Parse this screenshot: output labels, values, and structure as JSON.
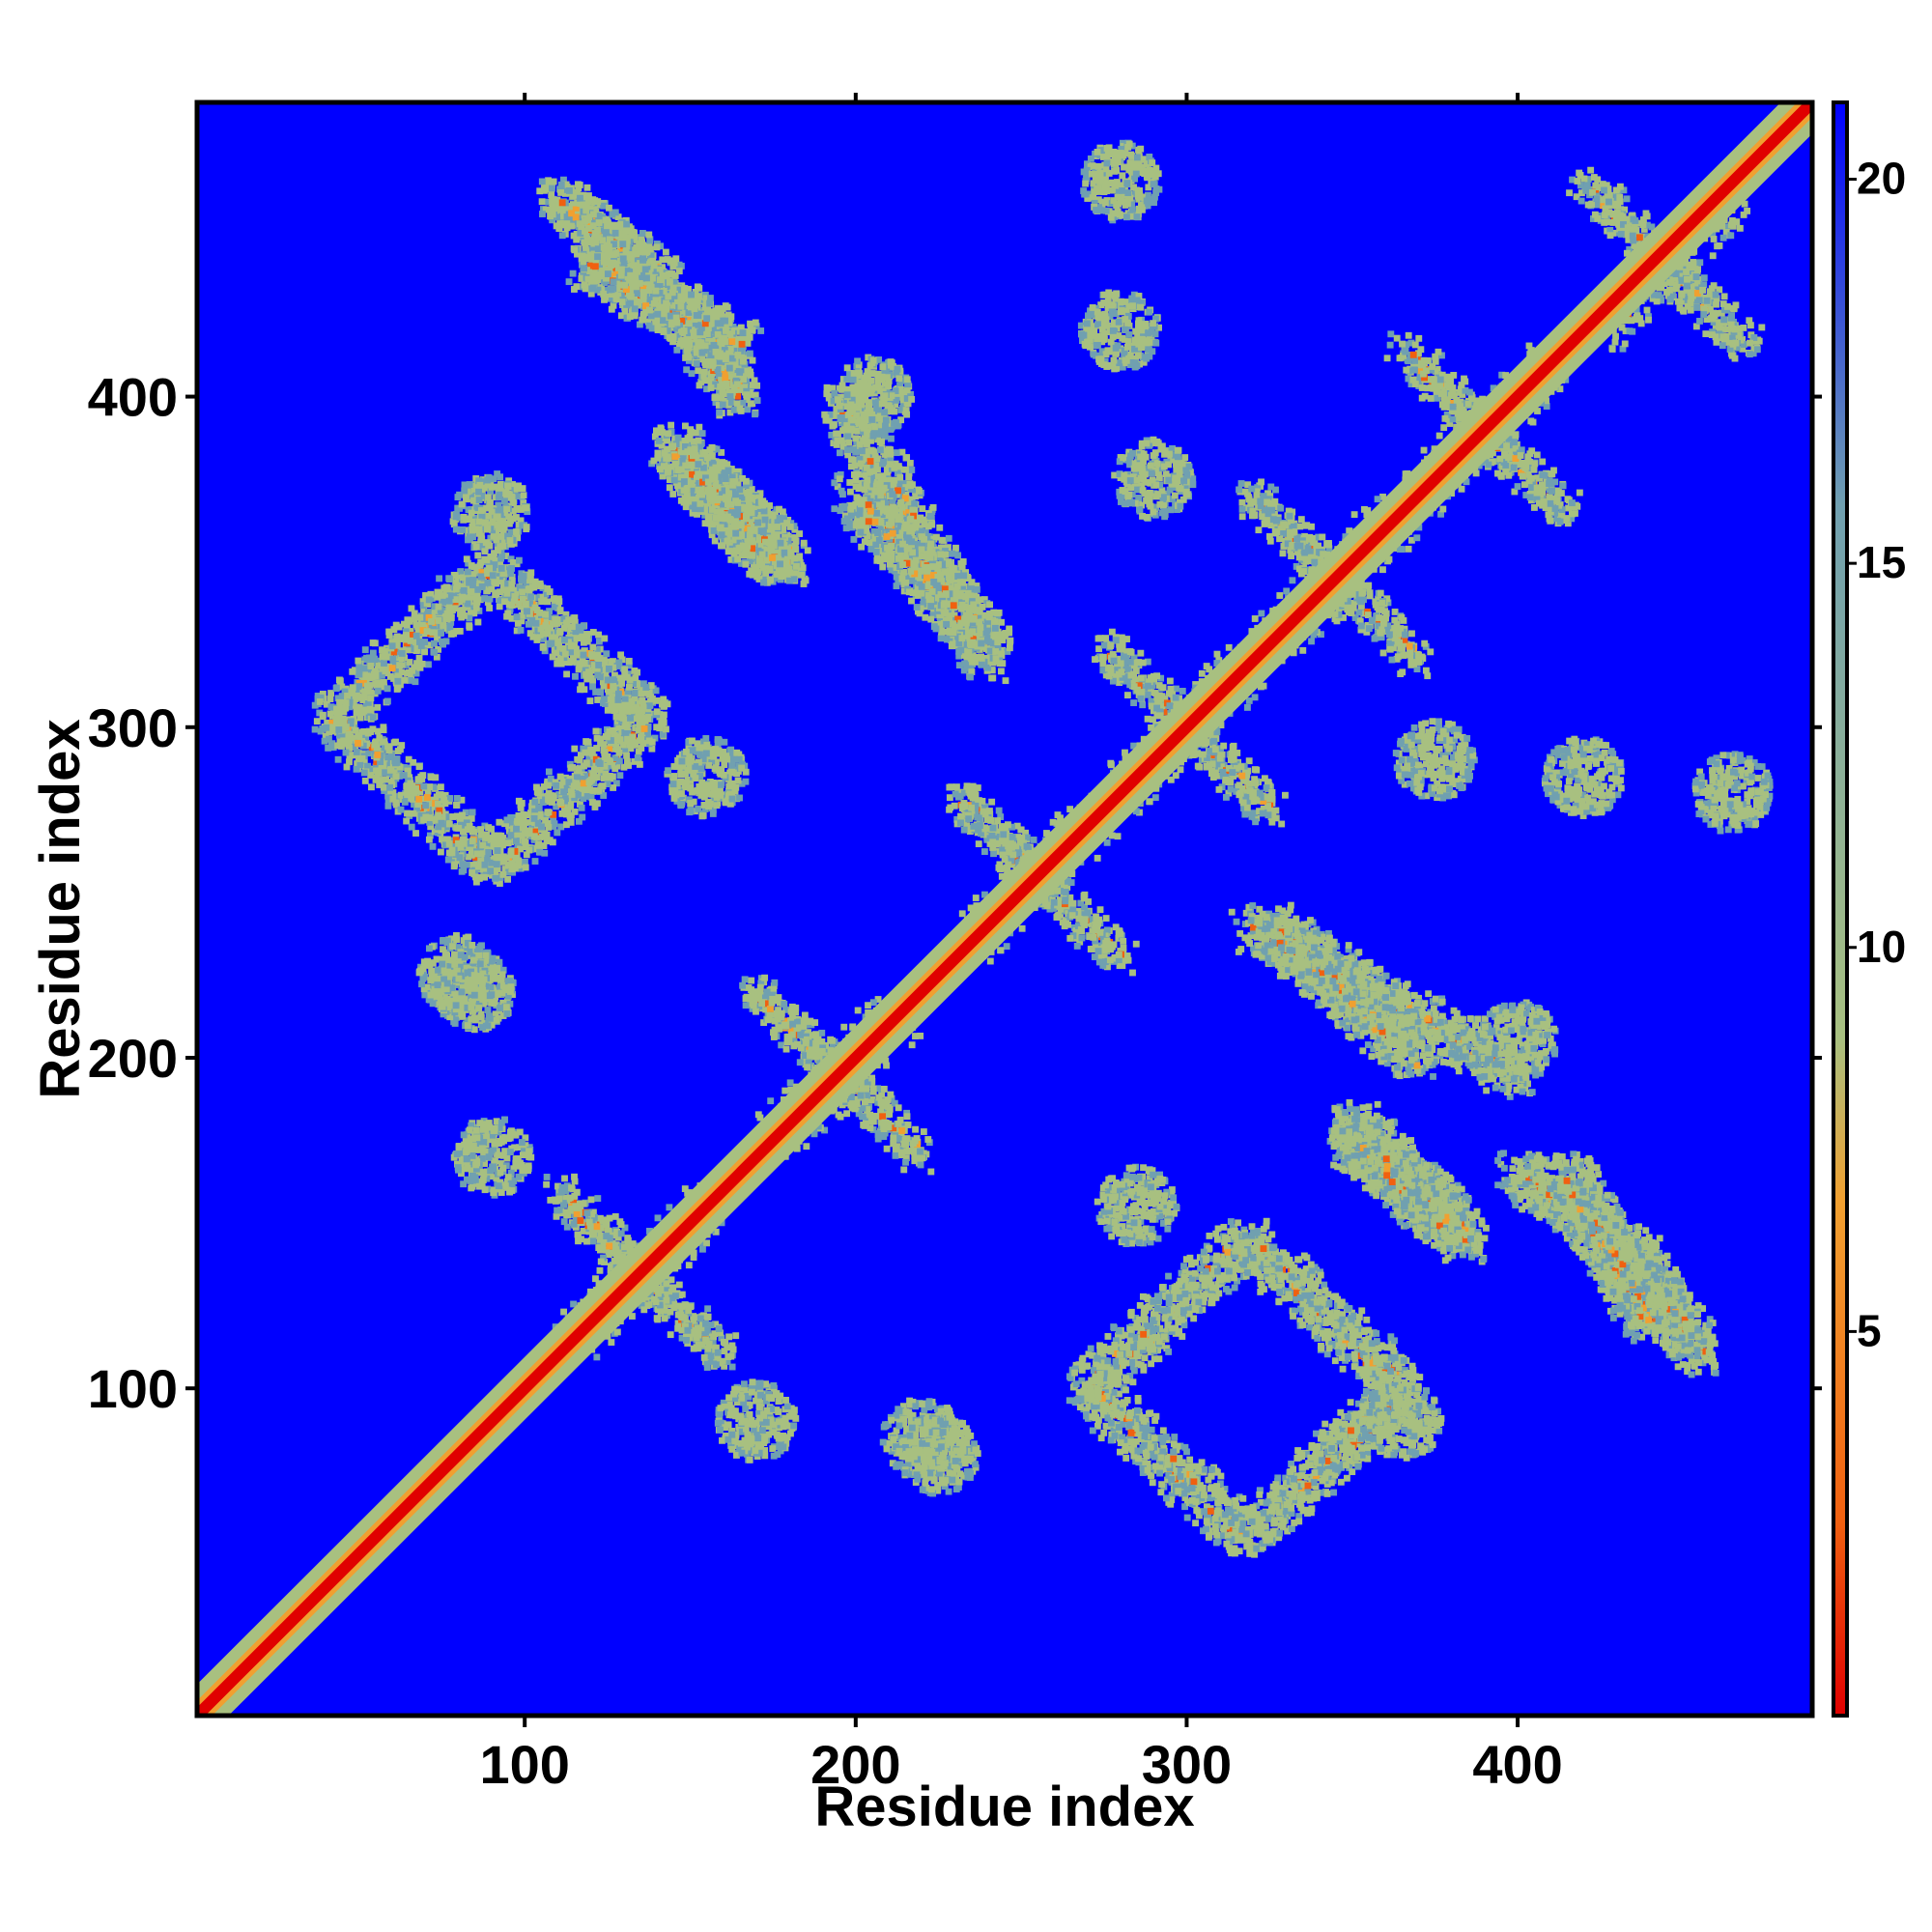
{
  "chart_data": {
    "type": "heatmap",
    "title": "",
    "xlabel": "Residue index",
    "ylabel": "Residue index",
    "xlim": [
      1,
      489
    ],
    "ylim": [
      1,
      489
    ],
    "x_ticks": [
      100,
      200,
      300,
      400
    ],
    "y_ticks": [
      100,
      200,
      300,
      400
    ],
    "colorbar": {
      "range": [
        0,
        21
      ],
      "ticks": [
        5,
        10,
        15,
        20
      ],
      "colors": [
        "#e00000",
        "#f06010",
        "#f0a030",
        "#a8c080",
        "#70a0b0",
        "#0000ff"
      ]
    },
    "diagonal": {
      "from": 1,
      "to": 489,
      "value": 0
    },
    "contact_features": [
      {
        "kind": "ring",
        "center": [
          90,
          303
        ],
        "size": [
          95,
          90
        ],
        "note": "square ring of contacts"
      },
      {
        "kind": "ring",
        "center": [
          318,
          100
        ],
        "size": [
          95,
          90
        ]
      },
      {
        "kind": "arc",
        "points": [
          [
            110,
            460
          ],
          [
            140,
            436
          ],
          [
            165,
            400
          ]
        ]
      },
      {
        "kind": "arc",
        "points": [
          [
            455,
            110
          ],
          [
            436,
            140
          ],
          [
            400,
            165
          ]
        ]
      },
      {
        "kind": "band",
        "from": [
          150,
          380
        ],
        "to": [
          180,
          350
        ]
      },
      {
        "kind": "band",
        "from": [
          380,
          150
        ],
        "to": [
          350,
          180
        ]
      },
      {
        "kind": "band",
        "from": [
          195,
          400
        ],
        "to": [
          240,
          320
        ]
      },
      {
        "kind": "band",
        "from": [
          400,
          195
        ],
        "to": [
          320,
          240
        ]
      },
      {
        "kind": "band",
        "from": [
          325,
          240
        ],
        "to": [
          370,
          200
        ]
      },
      {
        "kind": "band",
        "from": [
          240,
          325
        ],
        "to": [
          200,
          370
        ]
      },
      {
        "kind": "band",
        "from": [
          350,
          175
        ],
        "to": [
          385,
          145
        ]
      },
      {
        "kind": "band",
        "from": [
          175,
          350
        ],
        "to": [
          145,
          385
        ]
      },
      {
        "kind": "band",
        "from": [
          415,
          165
        ],
        "to": [
          440,
          120
        ]
      },
      {
        "kind": "band",
        "from": [
          165,
          415
        ],
        "to": [
          120,
          440
        ]
      },
      {
        "kind": "cross",
        "center": [
          445,
          440
        ]
      },
      {
        "kind": "cross",
        "center": [
          300,
          300
        ]
      },
      {
        "kind": "cross",
        "center": [
          345,
          345
        ]
      },
      {
        "kind": "cross",
        "center": [
          390,
          390
        ]
      },
      {
        "kind": "cross",
        "center": [
          255,
          255
        ]
      },
      {
        "kind": "cross",
        "center": [
          195,
          195
        ]
      },
      {
        "kind": "cross",
        "center": [
          135,
          135
        ]
      },
      {
        "kind": "blob",
        "center": [
          280,
          465
        ]
      },
      {
        "kind": "blob",
        "center": [
          280,
          420
        ]
      },
      {
        "kind": "blob",
        "center": [
          290,
          375
        ]
      },
      {
        "kind": "blob",
        "center": [
          420,
          285
        ]
      },
      {
        "kind": "blob",
        "center": [
          465,
          280
        ]
      },
      {
        "kind": "blob",
        "center": [
          375,
          290
        ]
      },
      {
        "kind": "blob",
        "center": [
          90,
          365
        ]
      },
      {
        "kind": "blob",
        "center": [
          365,
          90
        ]
      },
      {
        "kind": "blob",
        "center": [
          85,
          220
        ]
      },
      {
        "kind": "blob",
        "center": [
          220,
          85
        ]
      },
      {
        "kind": "blob",
        "center": [
          155,
          285
        ]
      },
      {
        "kind": "blob",
        "center": [
          285,
          155
        ]
      },
      {
        "kind": "blob",
        "center": [
          400,
          205
        ]
      },
      {
        "kind": "blob",
        "center": [
          205,
          400
        ]
      },
      {
        "kind": "blob",
        "center": [
          90,
          170
        ]
      },
      {
        "kind": "blob",
        "center": [
          170,
          90
        ]
      },
      {
        "kind": "blob",
        "center": [
          225,
          80
        ]
      },
      {
        "kind": "blob",
        "center": [
          80,
          225
        ]
      }
    ]
  }
}
